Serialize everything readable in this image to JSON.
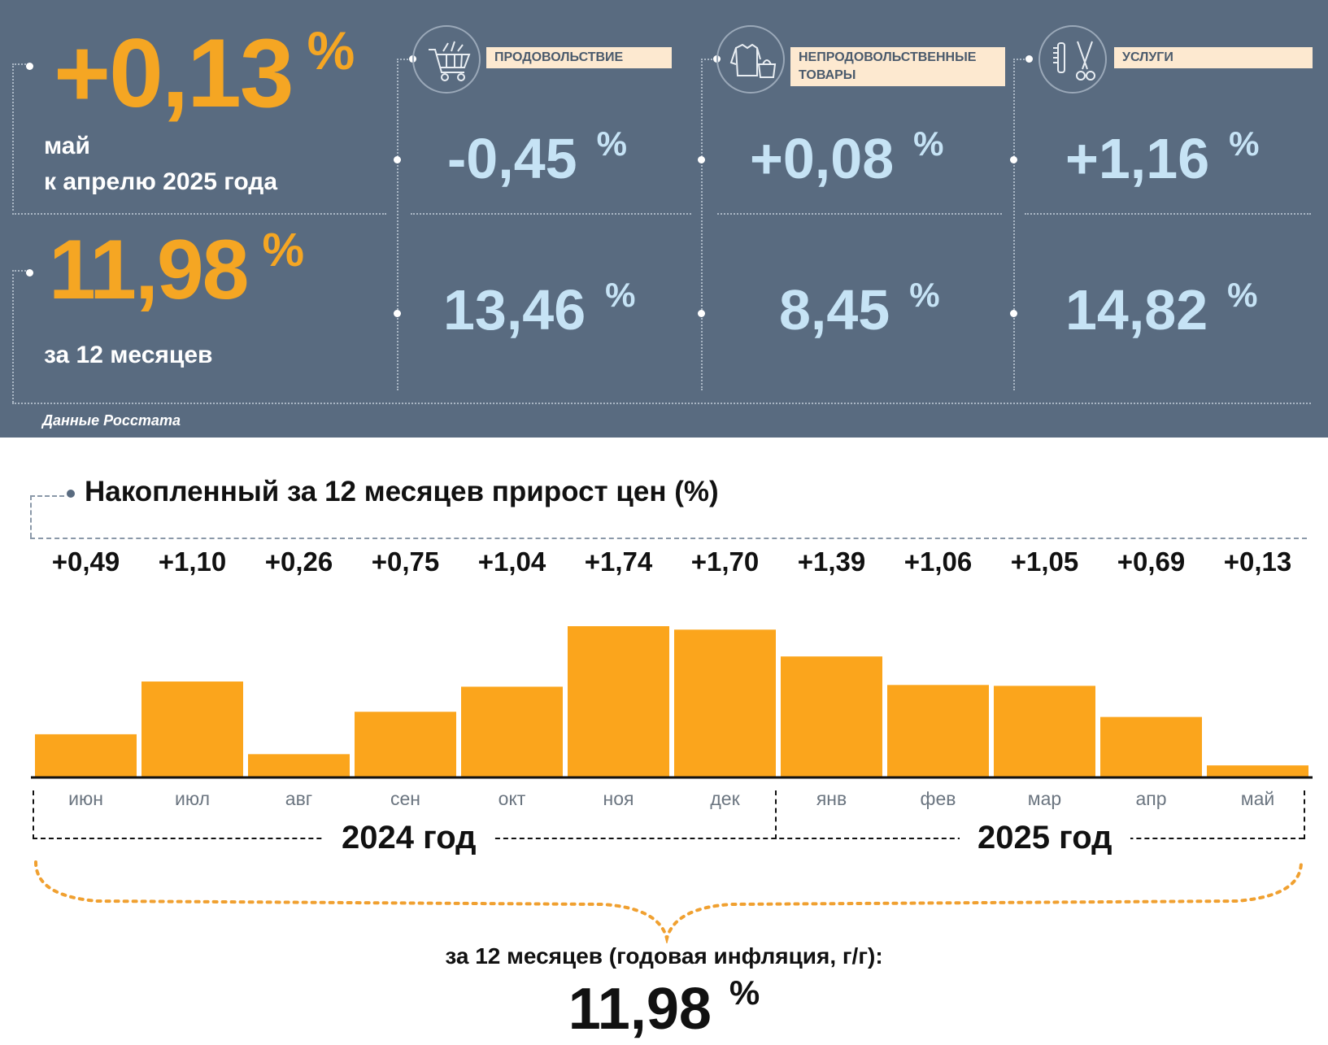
{
  "headline": {
    "monthly_value": "+0,13",
    "monthly_unit": "%",
    "monthly_label_line1": "май",
    "monthly_label_line2": "к апрелю 2025 года",
    "annual_value": "11,98",
    "annual_unit": "%",
    "annual_label": "за 12 месяцев"
  },
  "categories": [
    {
      "label": "ПРОДОВОЛЬСТВИЕ",
      "icon": "shopping-cart-icon",
      "monthly": "-0,45",
      "annual": "13,46",
      "unit": "%"
    },
    {
      "label": "НЕПРОДОВОЛЬСТВЕННЫЕ ТОВАРЫ",
      "icon": "clothes-bag-icon",
      "monthly": "+0,08",
      "annual": "8,45",
      "unit": "%"
    },
    {
      "label": "УСЛУГИ",
      "icon": "comb-scissors-icon",
      "monthly": "+1,16",
      "annual": "14,82",
      "unit": "%"
    }
  ],
  "source": "Данные Росстата",
  "colors": {
    "panel": "#596b80",
    "accent": "#f5a623",
    "value_light": "#c6e3f5",
    "label_bg": "#fde9d0",
    "bar": "#fba51c"
  },
  "chart_data": {
    "type": "bar",
    "title": "Накопленный за 12 месяцев прирост цен (%)",
    "categories": [
      "июн",
      "июл",
      "авг",
      "сен",
      "окт",
      "ноя",
      "дек",
      "янв",
      "фев",
      "мар",
      "апр",
      "май"
    ],
    "values": [
      0.49,
      1.1,
      0.26,
      0.75,
      1.04,
      1.74,
      1.7,
      1.39,
      1.06,
      1.05,
      0.69,
      0.13
    ],
    "value_labels": [
      "+0,49",
      "+1,10",
      "+0,26",
      "+0,75",
      "+1,04",
      "+1,74",
      "+1,70",
      "+1,39",
      "+1,06",
      "+1,05",
      "+0,69",
      "+0,13"
    ],
    "years": [
      "2024 год",
      "2025 год"
    ],
    "total_caption": "за 12 месяцев (годовая инфляция, г/г):",
    "total_value": "11,98",
    "total_unit": "%"
  }
}
